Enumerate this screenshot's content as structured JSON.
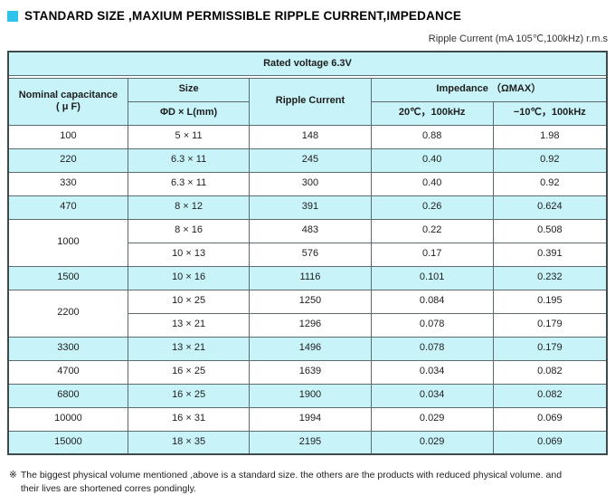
{
  "title": {
    "text": "STANDARD SIZE ,MAXIUM PERMISSIBLE RIPPLE CURRENT,IMPEDANCE"
  },
  "subtitle": "Ripple Current (mA 105℃,100kHz) r.m.s",
  "colors": {
    "accent_cyan": "#2fc2ea",
    "row_shade_cyan": "#c8f3f8",
    "border": "#5c6b70"
  },
  "table": {
    "banner": "Rated voltage 6.3V",
    "headers": {
      "capacitance_line1": "Nominal capacitance",
      "capacitance_line2": "( μ F)",
      "size_line1": "Size",
      "size_line2": "ΦD × L(mm)",
      "ripple": "Ripple Current",
      "impedance_group": "Impedance （ΩMAX）",
      "impedance_sub1": "20℃，100kHz",
      "impedance_sub2": "−10℃，100kHz"
    },
    "groups": [
      {
        "capacitance": "100",
        "shade": false,
        "entries": [
          {
            "size": "5 × 11",
            "ripple": "148",
            "imp20": "0.88",
            "imp10": "1.98"
          }
        ]
      },
      {
        "capacitance": "220",
        "shade": true,
        "entries": [
          {
            "size": "6.3 × 11",
            "ripple": "245",
            "imp20": "0.40",
            "imp10": "0.92"
          }
        ]
      },
      {
        "capacitance": "330",
        "shade": false,
        "entries": [
          {
            "size": "6.3 × 11",
            "ripple": "300",
            "imp20": "0.40",
            "imp10": "0.92"
          }
        ]
      },
      {
        "capacitance": "470",
        "shade": true,
        "entries": [
          {
            "size": "8 × 12",
            "ripple": "391",
            "imp20": "0.26",
            "imp10": "0.624"
          }
        ]
      },
      {
        "capacitance": "1000",
        "shade": false,
        "entries": [
          {
            "size": "8 × 16",
            "ripple": "483",
            "imp20": "0.22",
            "imp10": "0.508"
          },
          {
            "size": "10 × 13",
            "ripple": "576",
            "imp20": "0.17",
            "imp10": "0.391"
          }
        ]
      },
      {
        "capacitance": "1500",
        "shade": true,
        "entries": [
          {
            "size": "10 × 16",
            "ripple": "1116",
            "imp20": "0.101",
            "imp10": "0.232"
          }
        ]
      },
      {
        "capacitance": "2200",
        "shade": false,
        "entries": [
          {
            "size": "10 × 25",
            "ripple": "1250",
            "imp20": "0.084",
            "imp10": "0.195"
          },
          {
            "size": "13 × 21",
            "ripple": "1296",
            "imp20": "0.078",
            "imp10": "0.179"
          }
        ]
      },
      {
        "capacitance": "3300",
        "shade": true,
        "entries": [
          {
            "size": "13 × 21",
            "ripple": "1496",
            "imp20": "0.078",
            "imp10": "0.179"
          }
        ]
      },
      {
        "capacitance": "4700",
        "shade": false,
        "entries": [
          {
            "size": "16 × 25",
            "ripple": "1639",
            "imp20": "0.034",
            "imp10": "0.082"
          }
        ]
      },
      {
        "capacitance": "6800",
        "shade": true,
        "entries": [
          {
            "size": "16 × 25",
            "ripple": "1900",
            "imp20": "0.034",
            "imp10": "0.082"
          }
        ]
      },
      {
        "capacitance": "10000",
        "shade": false,
        "entries": [
          {
            "size": "16 × 31",
            "ripple": "1994",
            "imp20": "0.029",
            "imp10": "0.069"
          }
        ]
      },
      {
        "capacitance": "15000",
        "shade": true,
        "entries": [
          {
            "size": "18 × 35",
            "ripple": "2195",
            "imp20": "0.029",
            "imp10": "0.069"
          }
        ]
      }
    ]
  },
  "footnote": {
    "marker": "※",
    "line1": "The biggest physical volume mentioned ,above is a standard size. the others are the products with reduced physical volume. and",
    "line2": "their lives are shortened corres pondingly."
  }
}
